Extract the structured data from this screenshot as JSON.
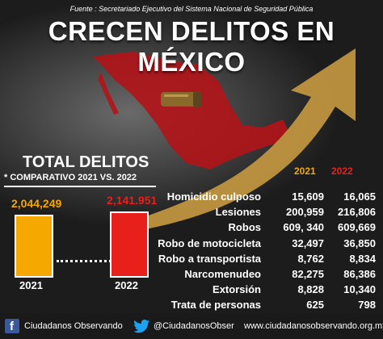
{
  "source": "Fuente : Secretariado Ejecutivo del Sistema Nacional de Seguridad Pública",
  "title": "CRECEN DELITOS EN MÉXICO",
  "total": {
    "title": "TOTAL DELITOS",
    "subtitle": "* COMPARATIVO 2021 VS. 2022"
  },
  "years": {
    "y2021": "2021",
    "y2022": "2022"
  },
  "colors": {
    "y2021": "#f5a800",
    "y2022": "#e8201c",
    "map": "#b3141a",
    "arrow": "#c89a40"
  },
  "chart_data": {
    "type": "bar",
    "categories": [
      "2021",
      "2022"
    ],
    "values": [
      2044249,
      2141951
    ],
    "value_labels": [
      "2,044,249",
      "2,141.951"
    ]
  },
  "crimes": [
    {
      "label": "Homicidio culposo",
      "v2021": "15,609",
      "v2022": "16,065"
    },
    {
      "label": "Lesiones",
      "v2021": "200,959",
      "v2022": "216,806"
    },
    {
      "label": "Robos",
      "v2021": "609, 340",
      "v2022": "609,669"
    },
    {
      "label": "Robo de motocicleta",
      "v2021": "32,497",
      "v2022": "36,850"
    },
    {
      "label": "Robo a transportista",
      "v2021": "8,762",
      "v2022": "8,834"
    },
    {
      "label": "Narcomenudeo",
      "v2021": "82,275",
      "v2022": "86,386"
    },
    {
      "label": "Extorsión",
      "v2021": "8,828",
      "v2022": "10,340"
    },
    {
      "label": "Trata de personas",
      "v2021": "625",
      "v2022": "798"
    }
  ],
  "footer": {
    "facebook": "Ciudadanos Observando",
    "twitter": "@CiudadanosObser",
    "website": "www.ciudadanosobservando.org.mx"
  },
  "icons": {
    "facebook": "facebook-icon",
    "twitter": "twitter-icon"
  }
}
